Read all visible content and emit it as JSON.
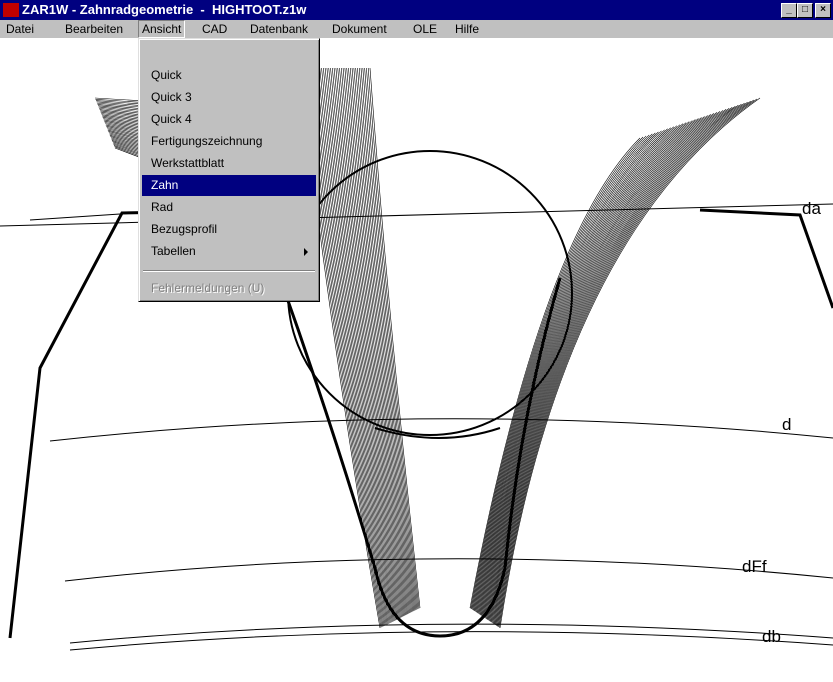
{
  "window": {
    "title": "ZAR1W - Zahnradgeometrie  -  HIGHTOOT.z1w"
  },
  "menu": [
    "Datei",
    "Bearbeiten",
    "Ansicht",
    "CAD",
    "Datenbank",
    "Dokument",
    "OLE",
    "Hilfe"
  ],
  "dropdown": {
    "items": [
      "Quick",
      "Quick 3",
      "Quick 4",
      "Fertigungszeichnung",
      "Werkstattblatt",
      "Zahn",
      "Rad",
      "Bezugsprofil",
      "Tabellen"
    ],
    "selected": "Zahn",
    "disabled_item": "Fehlermeldungen (U)"
  },
  "drawing": {
    "labels": [
      "da",
      "d",
      "dFf",
      "db"
    ]
  }
}
